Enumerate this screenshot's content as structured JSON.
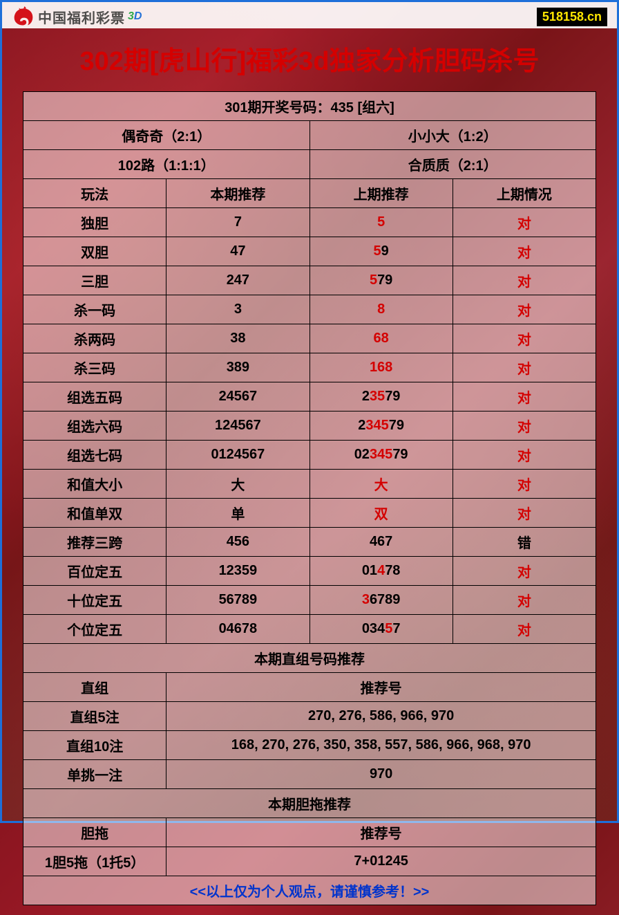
{
  "colors": {
    "frame_border": "#1e6fd9",
    "title_color": "#d40000",
    "red": "#d40000",
    "black": "#000000",
    "footer_blue": "#0033cc",
    "badge_bg": "#000000",
    "badge_fg": "#ffe600",
    "cell_bg": "rgba(255,255,255,0.5)",
    "logo_red": "#d4121a",
    "logo_text": "#4a4a4a",
    "logo_3": "#2aa84a",
    "logo_d": "#1e6fd9"
  },
  "header": {
    "logo_text": "中国福利彩票",
    "logo_3d_3": "3",
    "logo_3d_d": "D",
    "site": "518158.cn"
  },
  "title": "302期[虎山行]福彩3d独家分析胆码杀号",
  "table": {
    "result_line": "301期开奖号码：435 [组六]",
    "pair_row1": {
      "left": "偶奇奇（2:1）",
      "right": "小小大（1:2）"
    },
    "pair_row2": {
      "left": "102路（1:1:1）",
      "right": "合质质（2:1）"
    },
    "headers": {
      "c1": "玩法",
      "c2": "本期推荐",
      "c3": "上期推荐",
      "c4": "上期情况"
    },
    "rows": [
      {
        "name": "独胆",
        "cur": "7",
        "prev": [
          {
            "t": "5",
            "r": 1
          }
        ],
        "res": "对",
        "res_red": 1
      },
      {
        "name": "双胆",
        "cur": "47",
        "prev": [
          {
            "t": "5",
            "r": 1
          },
          {
            "t": "9"
          }
        ],
        "res": "对",
        "res_red": 1
      },
      {
        "name": "三胆",
        "cur": "247",
        "prev": [
          {
            "t": "5",
            "r": 1
          },
          {
            "t": "79"
          }
        ],
        "res": "对",
        "res_red": 1
      },
      {
        "name": "杀一码",
        "cur": "3",
        "prev": [
          {
            "t": "8",
            "r": 1
          }
        ],
        "res": "对",
        "res_red": 1
      },
      {
        "name": "杀两码",
        "cur": "38",
        "prev": [
          {
            "t": "68",
            "r": 1
          }
        ],
        "res": "对",
        "res_red": 1
      },
      {
        "name": "杀三码",
        "cur": "389",
        "prev": [
          {
            "t": "168",
            "r": 1
          }
        ],
        "res": "对",
        "res_red": 1
      },
      {
        "name": "组选五码",
        "cur": "24567",
        "prev": [
          {
            "t": "2"
          },
          {
            "t": "35",
            "r": 1
          },
          {
            "t": "79"
          }
        ],
        "res": "对",
        "res_red": 1
      },
      {
        "name": "组选六码",
        "cur": "124567",
        "prev": [
          {
            "t": "2"
          },
          {
            "t": "345",
            "r": 1
          },
          {
            "t": "79"
          }
        ],
        "res": "对",
        "res_red": 1
      },
      {
        "name": "组选七码",
        "cur": "0124567",
        "prev": [
          {
            "t": "02"
          },
          {
            "t": "345",
            "r": 1
          },
          {
            "t": "79"
          }
        ],
        "res": "对",
        "res_red": 1
      },
      {
        "name": "和值大小",
        "cur": "大",
        "prev": [
          {
            "t": "大",
            "r": 1
          }
        ],
        "res": "对",
        "res_red": 1
      },
      {
        "name": "和值单双",
        "cur": "单",
        "prev": [
          {
            "t": "双",
            "r": 1
          }
        ],
        "res": "对",
        "res_red": 1
      },
      {
        "name": "推荐三跨",
        "cur": "456",
        "prev": [
          {
            "t": "467"
          }
        ],
        "res": "错",
        "res_red": 0
      },
      {
        "name": "百位定五",
        "cur": "12359",
        "prev": [
          {
            "t": "01"
          },
          {
            "t": "4",
            "r": 1
          },
          {
            "t": "78"
          }
        ],
        "res": "对",
        "res_red": 1
      },
      {
        "name": "十位定五",
        "cur": "56789",
        "prev": [
          {
            "t": "3",
            "r": 1
          },
          {
            "t": "6789"
          }
        ],
        "res": "对",
        "res_red": 1
      },
      {
        "name": "个位定五",
        "cur": "04678",
        "prev": [
          {
            "t": "034"
          },
          {
            "t": "5",
            "r": 1
          },
          {
            "t": "7"
          }
        ],
        "res": "对",
        "res_red": 1
      }
    ],
    "section2_title": "本期直组号码推荐",
    "section2_header": {
      "left": "直组",
      "right": "推荐号"
    },
    "section2_rows": [
      {
        "name": "直组5注",
        "val": "270, 276, 586, 966, 970"
      },
      {
        "name": "直组10注",
        "val": "168, 270, 276, 350, 358, 557, 586, 966, 968, 970"
      },
      {
        "name": "单挑一注",
        "val": "970"
      }
    ],
    "section3_title": "本期胆拖推荐",
    "section3_header": {
      "left": "胆拖",
      "right": "推荐号"
    },
    "section3_rows": [
      {
        "name": "1胆5拖（1托5）",
        "val": "7+01245"
      }
    ],
    "footer": "<<以上仅为个人观点，请谨慎参考！>>"
  }
}
